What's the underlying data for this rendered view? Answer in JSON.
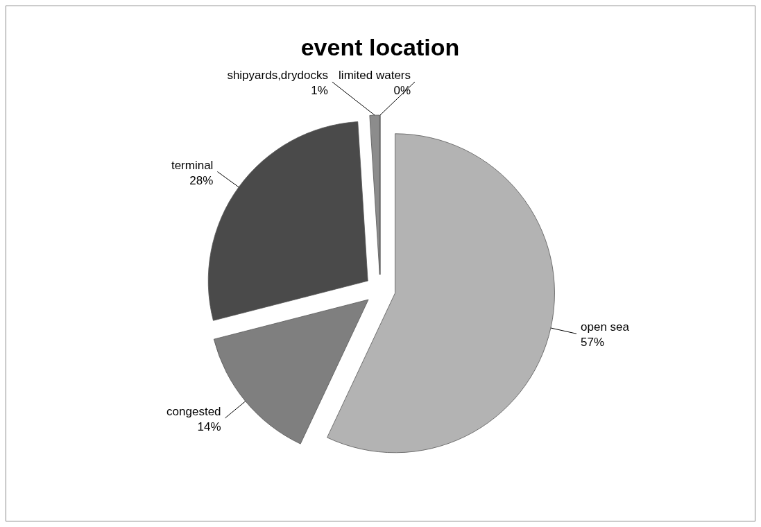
{
  "chart_data": {
    "type": "pie",
    "title": "event location",
    "categories": [
      "open sea",
      "congested",
      "terminal",
      "shipyards,drydocks",
      "limited waters"
    ],
    "values": [
      57,
      14,
      28,
      1,
      0
    ],
    "value_labels": [
      "57%",
      "14%",
      "28%",
      "1%",
      "0%"
    ],
    "colors": [
      "#b3b3b3",
      "#7f7f7f",
      "#4a4a4a",
      "#8c8c8c",
      "#a6a6a6"
    ]
  }
}
